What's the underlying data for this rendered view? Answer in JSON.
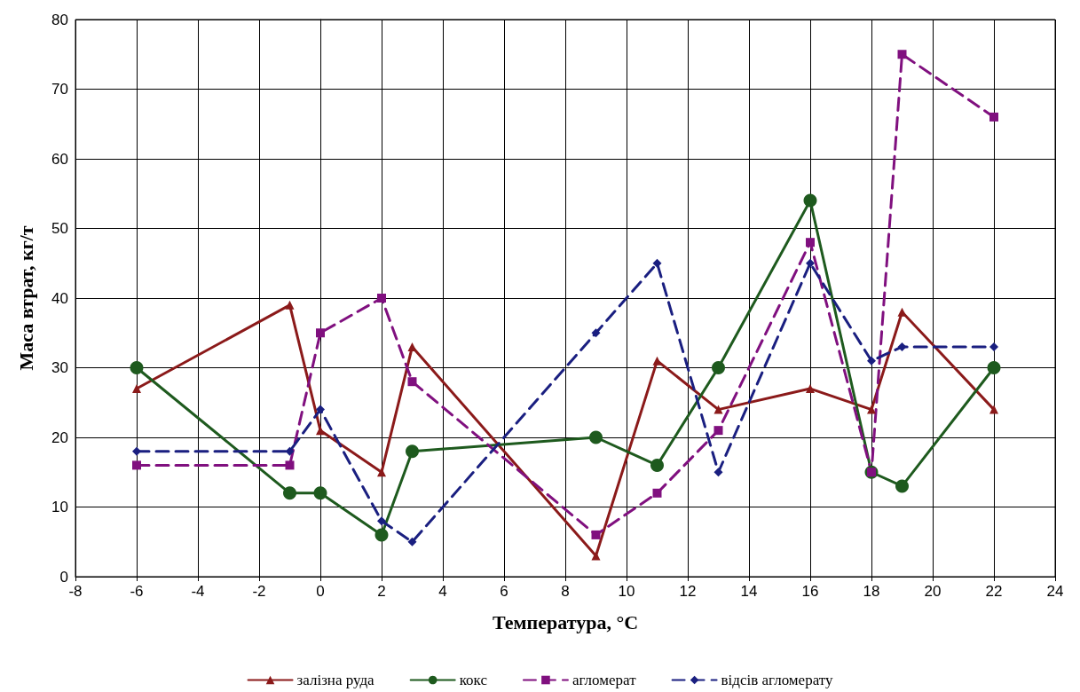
{
  "chart_data": {
    "type": "line",
    "xlabel": "Температура, °C",
    "ylabel": "Маса втрат, кг/т",
    "xlim": [
      -8,
      24
    ],
    "xticks": [
      -8,
      -6,
      -4,
      -2,
      0,
      2,
      4,
      6,
      8,
      10,
      12,
      14,
      16,
      18,
      20,
      22,
      24
    ],
    "ylim": [
      0,
      80
    ],
    "yticks": [
      0,
      10,
      20,
      30,
      40,
      50,
      60,
      70,
      80
    ],
    "grid": true,
    "legend": "bottom",
    "x": [
      -6,
      -1,
      0,
      2,
      3,
      9,
      11,
      13,
      16,
      18,
      19,
      22
    ],
    "series": [
      {
        "name": "залізна руда",
        "color": "#8b1a1a",
        "marker": "triangle",
        "line_style": "solid",
        "values": [
          27,
          39,
          21,
          15,
          33,
          3,
          31,
          24,
          27,
          24,
          38,
          24
        ]
      },
      {
        "name": "кокс",
        "color": "#1e5a1e",
        "marker": "circle",
        "line_style": "solid",
        "values": [
          30,
          12,
          12,
          6,
          18,
          20,
          16,
          30,
          54,
          15,
          13,
          30
        ]
      },
      {
        "name": "агломерат",
        "color": "#80107f",
        "marker": "square",
        "line_style": "dashed",
        "values": [
          16,
          16,
          35,
          40,
          28,
          6,
          12,
          21,
          48,
          15,
          75,
          66
        ]
      },
      {
        "name": "відсів агломерату",
        "color": "#1a1f80",
        "marker": "diamond",
        "line_style": "dashed",
        "values": [
          18,
          18,
          24,
          8,
          5,
          35,
          45,
          15,
          45,
          31,
          33,
          33
        ]
      }
    ]
  }
}
